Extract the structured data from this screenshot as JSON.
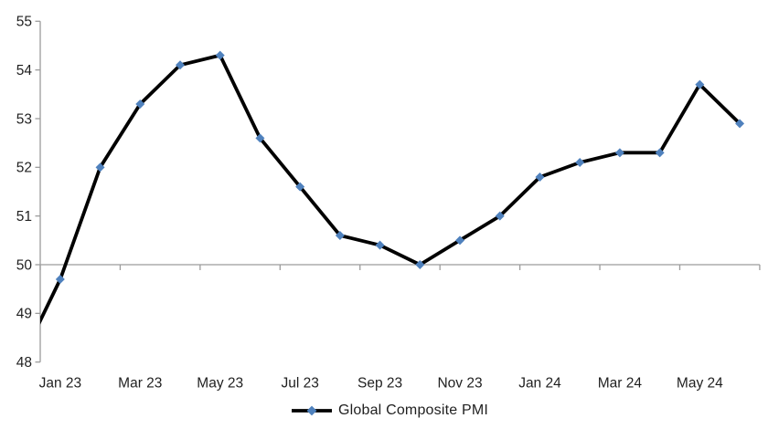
{
  "chart_data": {
    "type": "line",
    "title": "",
    "legend": "Global Composite PMI",
    "legend_position": "bottom-center",
    "categories": [
      "Jan 23",
      "Feb 23",
      "Mar 23",
      "Apr 23",
      "May 23",
      "Jun 23",
      "Jul 23",
      "Aug 23",
      "Sep 23",
      "Oct 23",
      "Nov 23",
      "Dec 23",
      "Jan 24",
      "Feb 24",
      "Mar 24",
      "Apr 24",
      "May 24",
      "Jun 24"
    ],
    "x_tick_labels_shown": [
      "Jan 23",
      "Mar 23",
      "May 23",
      "Jul 23",
      "Sep 23",
      "Nov 23",
      "Jan 24",
      "Mar 24",
      "May 24"
    ],
    "x_label_interval": 2,
    "series": [
      {
        "name": "Global Composite PMI",
        "values": [
          49.7,
          52.0,
          53.3,
          54.1,
          54.3,
          52.6,
          51.6,
          50.6,
          50.4,
          50.0,
          50.5,
          51.0,
          51.8,
          52.1,
          52.3,
          52.3,
          53.7,
          52.9
        ],
        "pre_point": {
          "category": "Dec 22",
          "value": 48.0,
          "clipped": true,
          "marker": false
        }
      }
    ],
    "ylim": [
      48,
      55
    ],
    "y_ticks": [
      55,
      54,
      53,
      52,
      51,
      50,
      49,
      48
    ],
    "x_axis_cross_value": 50,
    "grid": false,
    "marker_shape": "diamond",
    "colors": {
      "line": "#000000",
      "marker": "#4F81BD",
      "axis": "#9C9C9C",
      "text": "#1F1F1F"
    }
  }
}
